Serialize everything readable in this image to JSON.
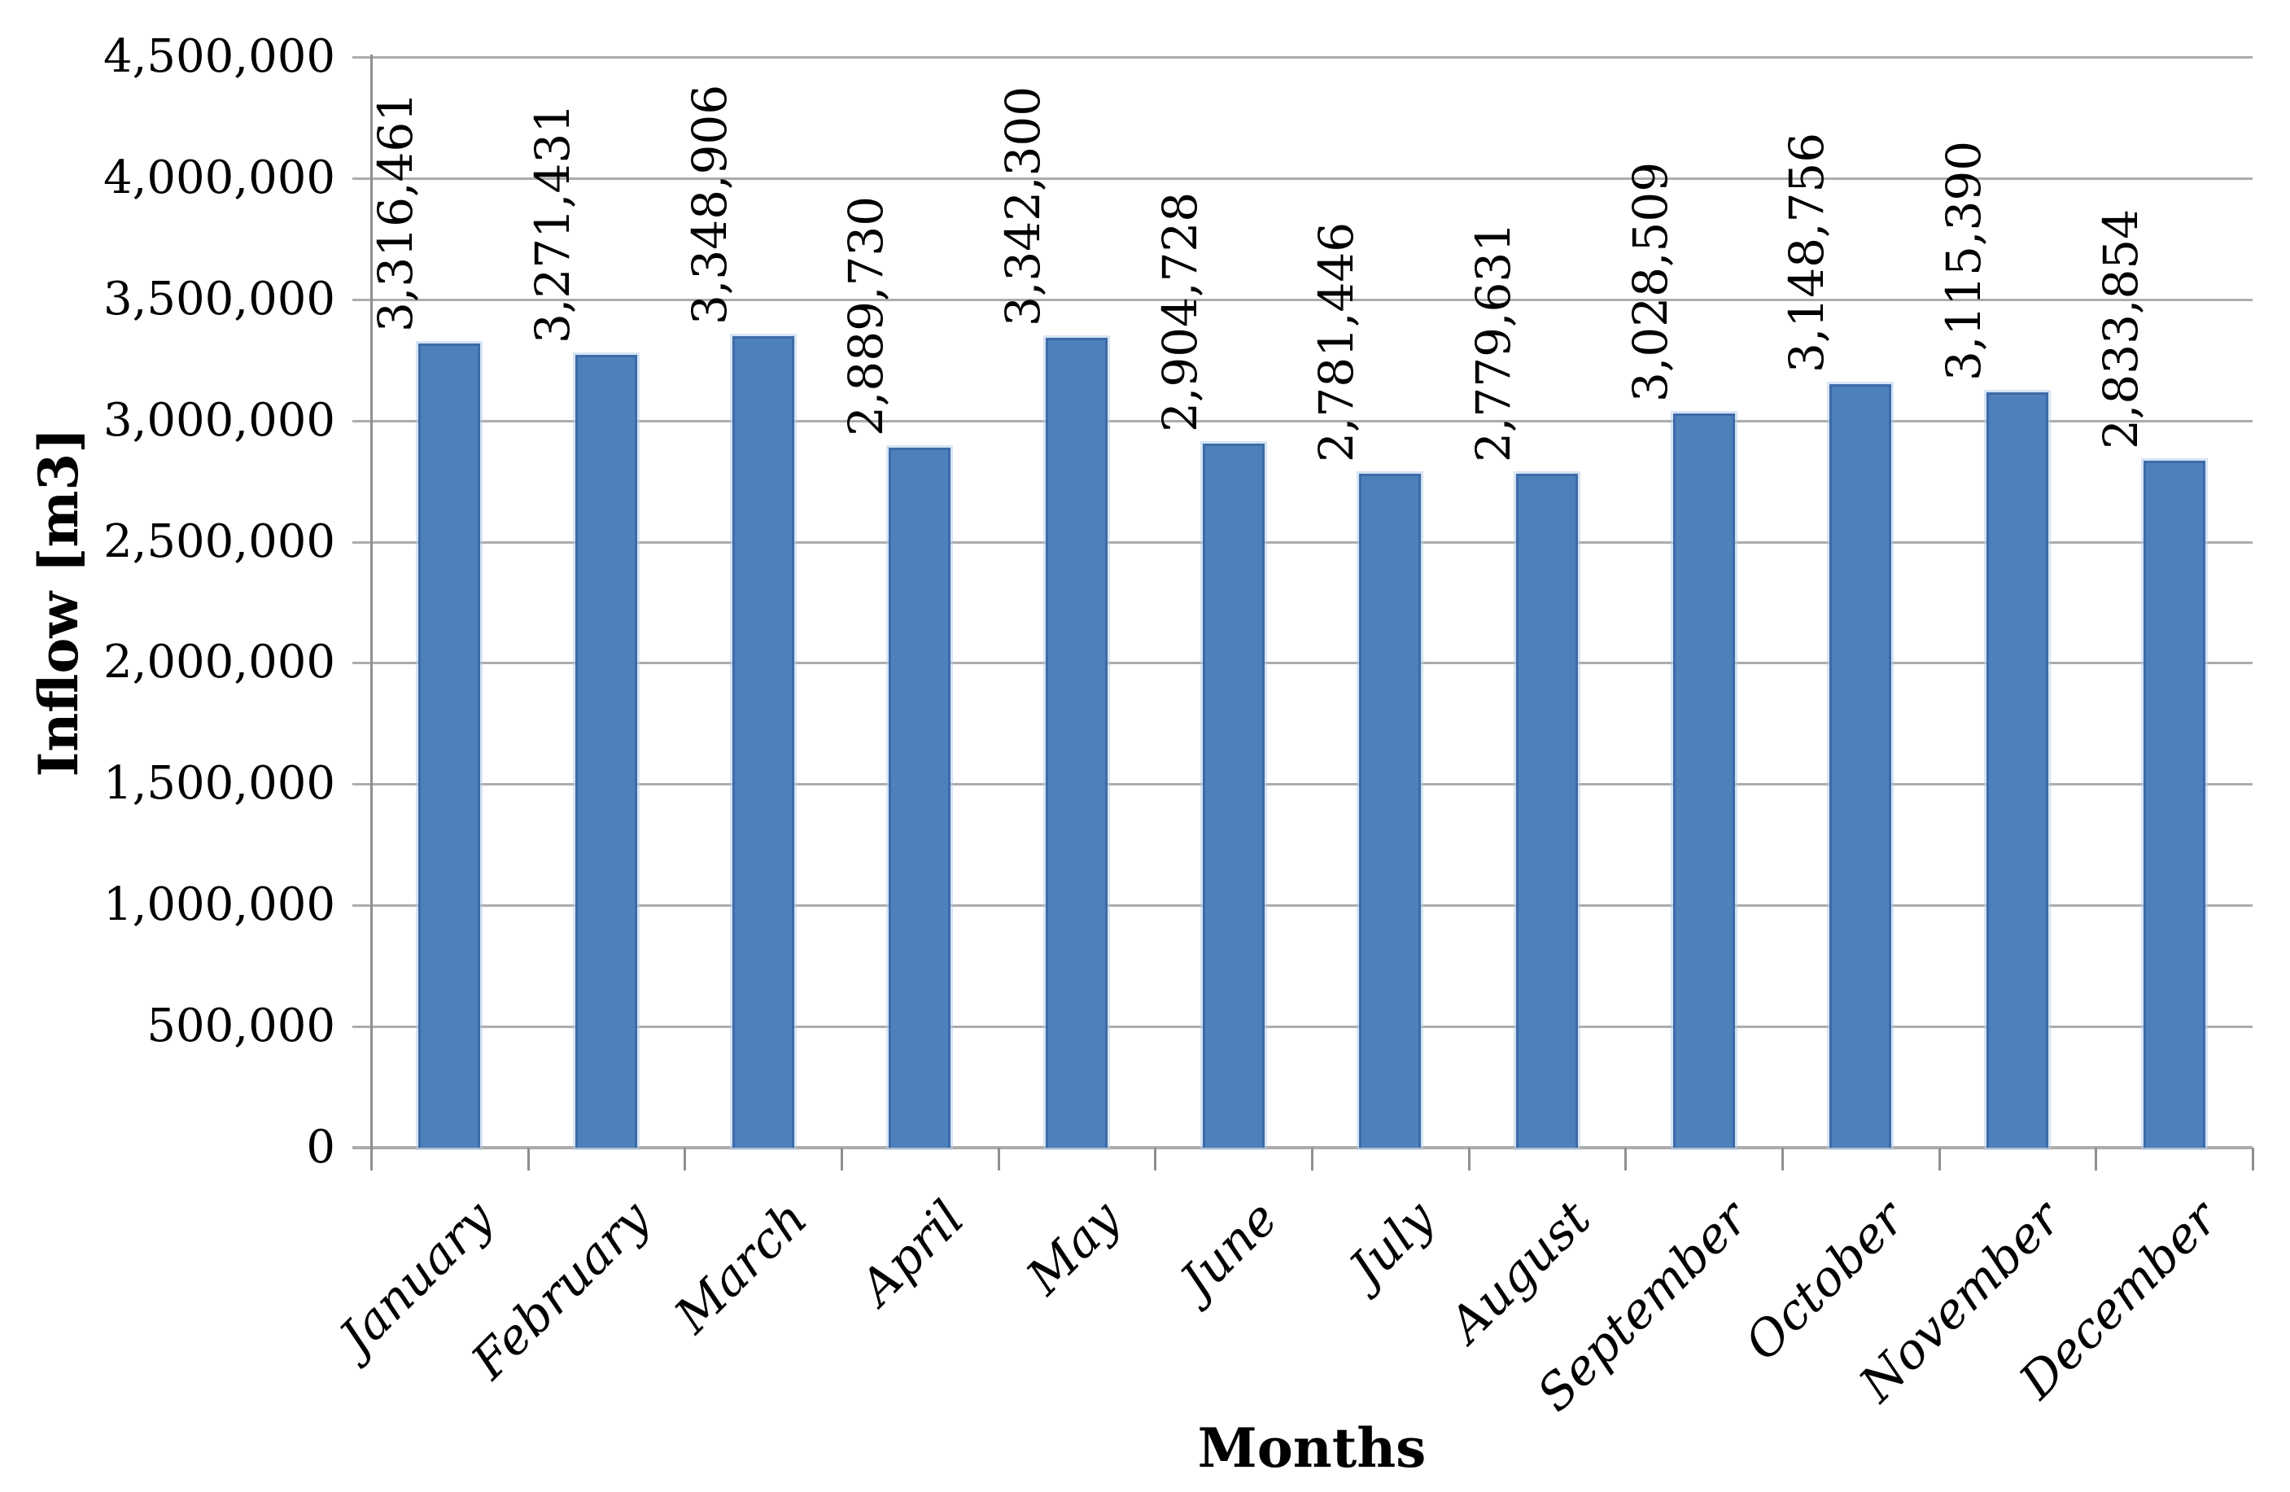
{
  "chart_data": {
    "type": "bar",
    "title": "",
    "categories": [
      "January",
      "February",
      "March",
      "April",
      "May",
      "June",
      "July",
      "August",
      "September",
      "October",
      "November",
      "December"
    ],
    "values": [
      3316461,
      3271431,
      3348906,
      2889730,
      3342300,
      2904728,
      2781446,
      2779631,
      3028509,
      3148756,
      3115390,
      2833854
    ],
    "data_labels": [
      "3,316,461",
      "3,271,431",
      "3,348,906",
      "2,889,730",
      "3,342,300",
      "2,904,728",
      "2,781,446",
      "2,779,631",
      "3,028,509",
      "3,148,756",
      "3,115,390",
      "2,833,854"
    ],
    "xlabel": "Months",
    "ylabel": "Inflow [m3]",
    "ylim": [
      0,
      4500000
    ],
    "ytick_step": 500000,
    "ytick_labels": [
      "4,500,000",
      "4,000,000",
      "3,500,000",
      "3,000,000",
      "2,500,000",
      "2,000,000",
      "1,500,000",
      "1,000,000",
      "500,000",
      "0"
    ],
    "grid": true,
    "legend_position": "none",
    "bar_color": "#4E80BC",
    "bar_border_color": "#3D6BA8",
    "bar_outer_glow": "rgba(180,205,235,0.55)",
    "gridline_color": "#ACACAC",
    "axis_color": "#8F8F8F",
    "text_color": "#000000",
    "background_color": "#FFFFFF"
  }
}
